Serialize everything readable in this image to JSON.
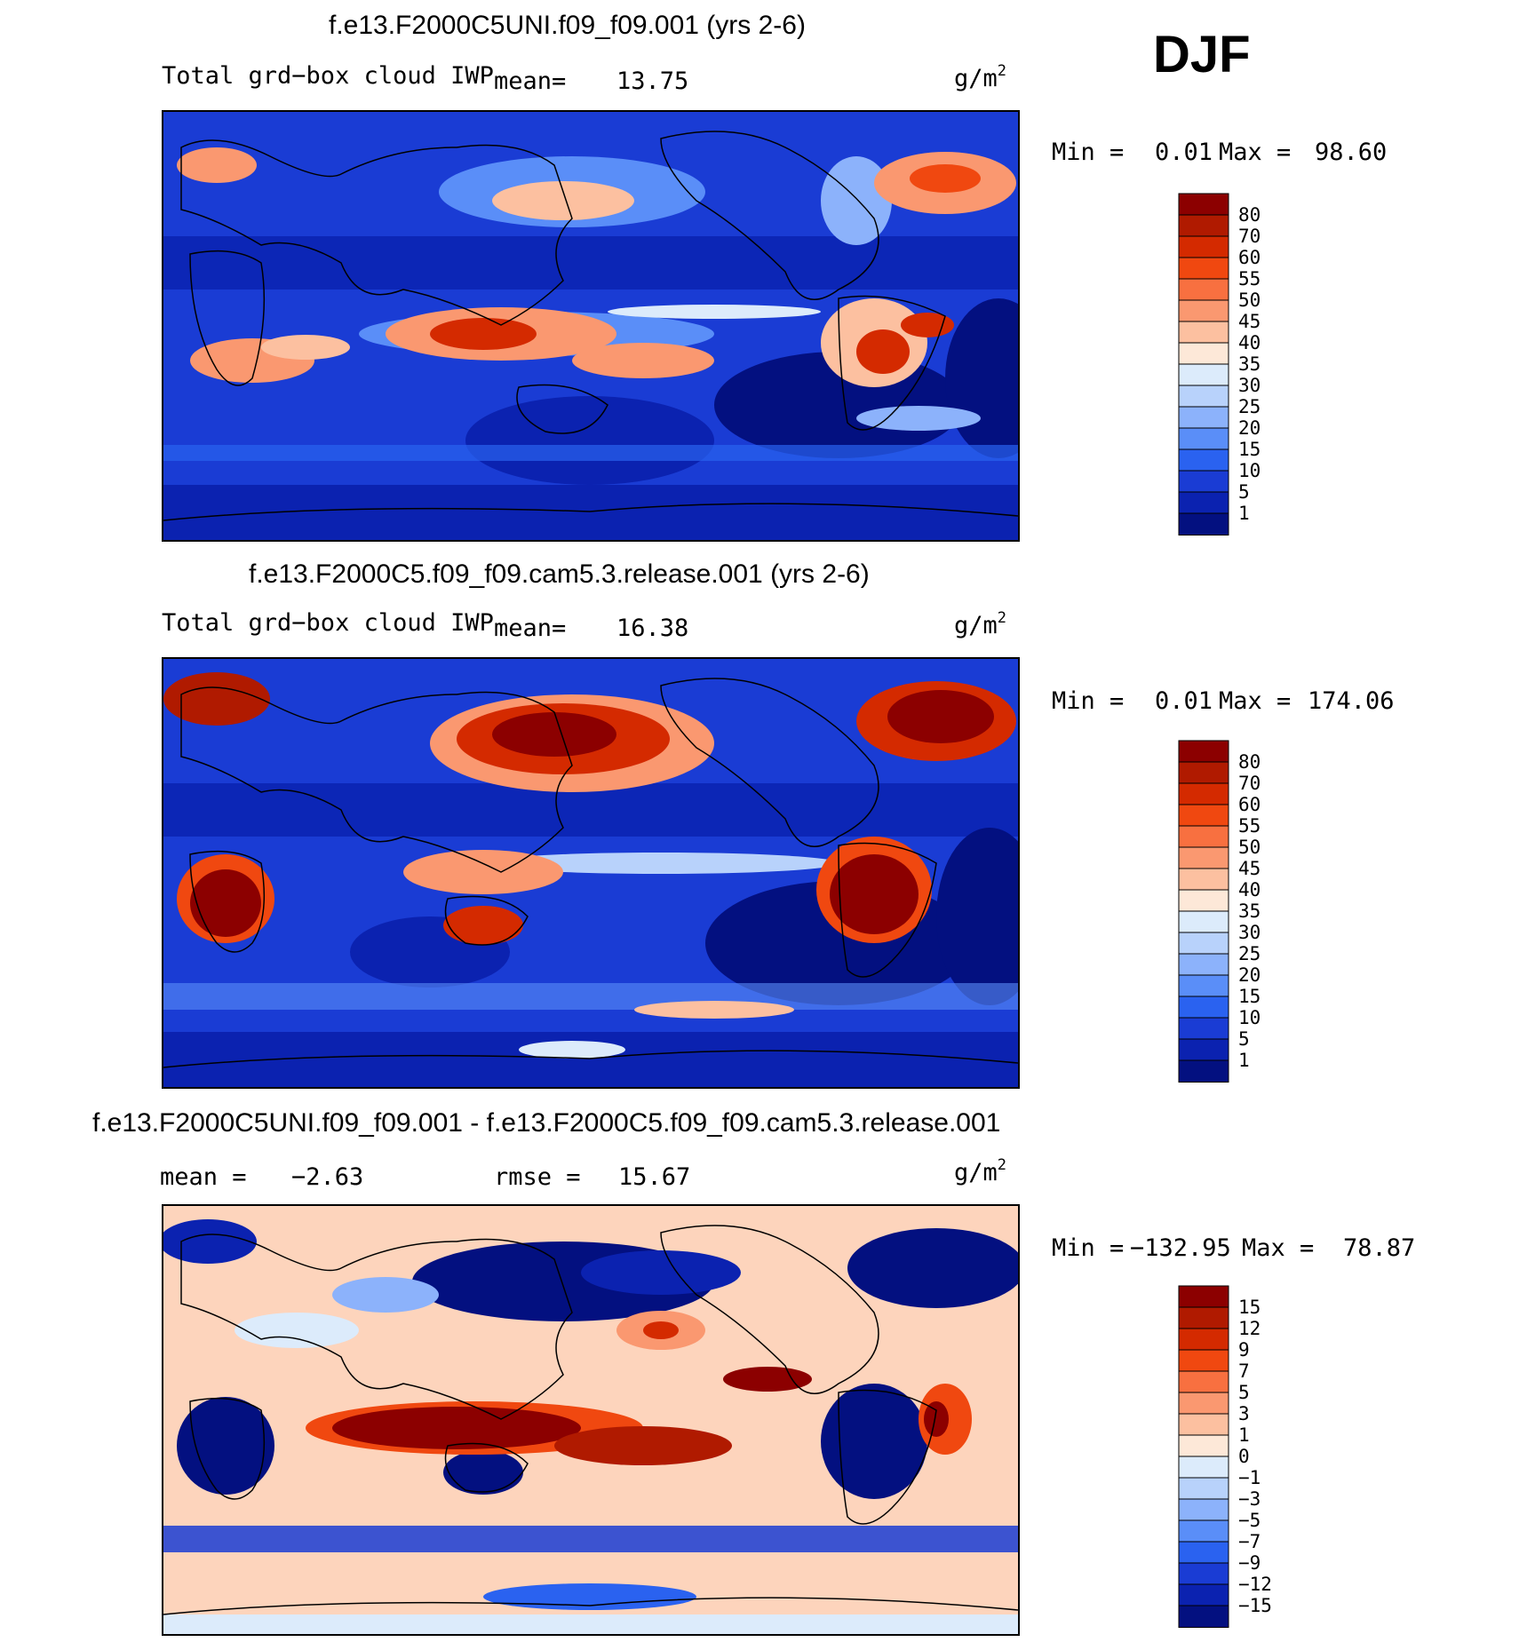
{
  "season": "DJF",
  "panels": [
    {
      "title": "f.e13.F2000C5UNI.f09_f09.001 (yrs 2-6)",
      "left_label": "Total grd−box cloud IWP",
      "stat1_label": "mean=",
      "stat1_value": "13.75",
      "units_base": "g/m",
      "units_exp": "2",
      "min_label": "Min =",
      "min_value": "0.01",
      "max_label": "Max =",
      "max_value": "98.60",
      "levels": [
        "80",
        "70",
        "60",
        "55",
        "50",
        "45",
        "40",
        "35",
        "30",
        "25",
        "20",
        "15",
        "10",
        "5",
        "1"
      ],
      "colors": [
        "#8c0000",
        "#b01a00",
        "#d42a00",
        "#f04810",
        "#f87040",
        "#fa9870",
        "#fcc0a0",
        "#fde8d8",
        "#dcebfb",
        "#b8d2fb",
        "#8cb2fb",
        "#5a8ef8",
        "#2a62f0",
        "#1a3cd4",
        "#0b22b0",
        "#031080"
      ]
    },
    {
      "title": "f.e13.F2000C5.f09_f09.cam5.3.release.001 (yrs 2-6)",
      "left_label": "Total grd−box cloud IWP",
      "stat1_label": "mean=",
      "stat1_value": "16.38",
      "units_base": "g/m",
      "units_exp": "2",
      "min_label": "Min =",
      "min_value": "0.01",
      "max_label": "Max =",
      "max_value": "174.06",
      "levels": [
        "80",
        "70",
        "60",
        "55",
        "50",
        "45",
        "40",
        "35",
        "30",
        "25",
        "20",
        "15",
        "10",
        "5",
        "1"
      ],
      "colors": [
        "#8c0000",
        "#b01a00",
        "#d42a00",
        "#f04810",
        "#f87040",
        "#fa9870",
        "#fcc0a0",
        "#fde8d8",
        "#dcebfb",
        "#b8d2fb",
        "#8cb2fb",
        "#5a8ef8",
        "#2a62f0",
        "#1a3cd4",
        "#0b22b0",
        "#031080"
      ]
    },
    {
      "title": "f.e13.F2000C5UNI.f09_f09.001 - f.e13.F2000C5.f09_f09.cam5.3.release.001",
      "left_label": "",
      "stat1_label": "mean =",
      "stat1_value": "−2.63",
      "stat2_label": "rmse =",
      "stat2_value": "15.67",
      "units_base": "g/m",
      "units_exp": "2",
      "min_label": "Min =",
      "min_value": "−132.95",
      "max_label": "Max =",
      "max_value": "78.87",
      "levels": [
        "15",
        "12",
        "9",
        "7",
        "5",
        "3",
        "1",
        "0",
        "−1",
        "−3",
        "−5",
        "−7",
        "−9",
        "−12",
        "−15"
      ],
      "colors": [
        "#8c0000",
        "#b01a00",
        "#d42a00",
        "#f04810",
        "#f87040",
        "#fa9870",
        "#fcc0a0",
        "#fde8d8",
        "#dcebfb",
        "#b8d2fb",
        "#8cb2fb",
        "#5a8ef8",
        "#2a62f0",
        "#1a3cd4",
        "#0b22b0",
        "#031080"
      ]
    }
  ]
}
